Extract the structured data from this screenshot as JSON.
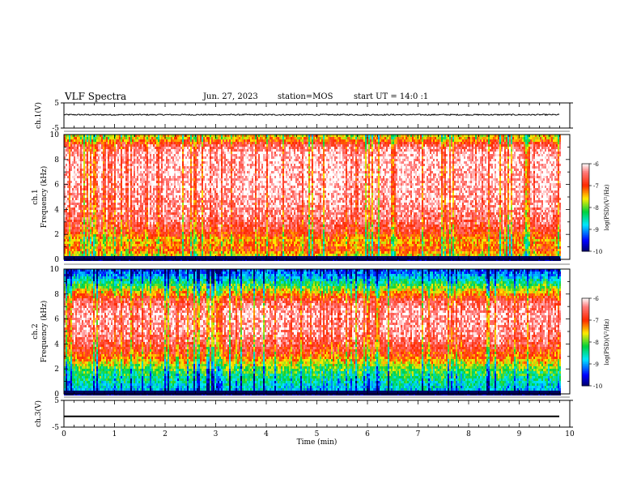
{
  "header": {
    "title": "VLF Spectra",
    "date": "Jun. 27, 2023",
    "station": "station=MOS",
    "start": "start UT =  14:0  :1"
  },
  "chart_data": [
    {
      "type": "line",
      "panel": "ch1-waveform",
      "ylabel": "ch.1(V)",
      "ylim": [
        -5,
        5
      ],
      "y_tick_labels": [
        "5",
        "-5"
      ],
      "xlim": [
        0,
        10
      ],
      "trace_level": 0.3,
      "trace_noise": 0.25,
      "trace_end": 9.8
    },
    {
      "type": "heatmap",
      "panel": "ch1-spectrogram",
      "ylabel": "ch.1",
      "ylabel2": "Frequency (kHz)",
      "ylim": [
        0,
        10
      ],
      "y_tick_labels": [
        "0",
        "2",
        "4",
        "6",
        "8",
        "10"
      ],
      "xlim": [
        0,
        10
      ],
      "data_end": 9.8,
      "colorbar": {
        "label": "log(PSD)(V²/Hz)",
        "range": [
          -10,
          -6
        ],
        "tick_labels": [
          "-6",
          "-7",
          "-8",
          "-9",
          "-10"
        ]
      },
      "profile": [
        {
          "f": 0.0,
          "v": -9.8
        },
        {
          "f": 0.3,
          "v": -7.6
        },
        {
          "f": 0.8,
          "v": -7.0
        },
        {
          "f": 1.5,
          "v": -7.4
        },
        {
          "f": 2.0,
          "v": -6.9
        },
        {
          "f": 3.0,
          "v": -6.5
        },
        {
          "f": 4.0,
          "v": -6.3
        },
        {
          "f": 6.0,
          "v": -6.1
        },
        {
          "f": 8.5,
          "v": -6.1
        },
        {
          "f": 9.2,
          "v": -6.6
        },
        {
          "f": 9.6,
          "v": -7.3
        },
        {
          "f": 10.0,
          "v": -7.6
        }
      ]
    },
    {
      "type": "heatmap",
      "panel": "ch2-spectrogram",
      "ylabel": "ch.2",
      "ylabel2": "Frequency (kHz)",
      "ylim": [
        0,
        10
      ],
      "y_tick_labels": [
        "0",
        "2",
        "4",
        "6",
        "8",
        "10"
      ],
      "xlim": [
        0,
        10
      ],
      "data_end": 9.8,
      "colorbar": {
        "label": "log(PSD)(V²/Hz)",
        "range": [
          -10,
          -6
        ],
        "tick_labels": [
          "-6",
          "-7",
          "-8",
          "-9",
          "-10"
        ]
      },
      "profile": [
        {
          "f": 0.0,
          "v": -9.9
        },
        {
          "f": 0.3,
          "v": -8.8
        },
        {
          "f": 1.0,
          "v": -8.5
        },
        {
          "f": 2.0,
          "v": -8.0
        },
        {
          "f": 3.0,
          "v": -7.1
        },
        {
          "f": 4.0,
          "v": -6.6
        },
        {
          "f": 5.0,
          "v": -6.3
        },
        {
          "f": 6.5,
          "v": -6.2
        },
        {
          "f": 7.5,
          "v": -6.6
        },
        {
          "f": 8.3,
          "v": -7.6
        },
        {
          "f": 9.0,
          "v": -8.4
        },
        {
          "f": 9.6,
          "v": -9.1
        },
        {
          "f": 10.0,
          "v": -9.4
        }
      ]
    },
    {
      "type": "line",
      "panel": "ch3-waveform",
      "ylabel": "ch.3(V)",
      "ylim": [
        -5,
        5
      ],
      "y_tick_labels": [
        "5",
        "-5"
      ],
      "xlim": [
        0,
        10
      ],
      "xlabel": "Time (min)",
      "x_tick_labels": [
        "0",
        "1",
        "2",
        "3",
        "4",
        "5",
        "6",
        "7",
        "8",
        "9",
        "10"
      ],
      "trace_level": -1.0,
      "trace_noise": 0.0,
      "trace_end": 9.8
    }
  ]
}
